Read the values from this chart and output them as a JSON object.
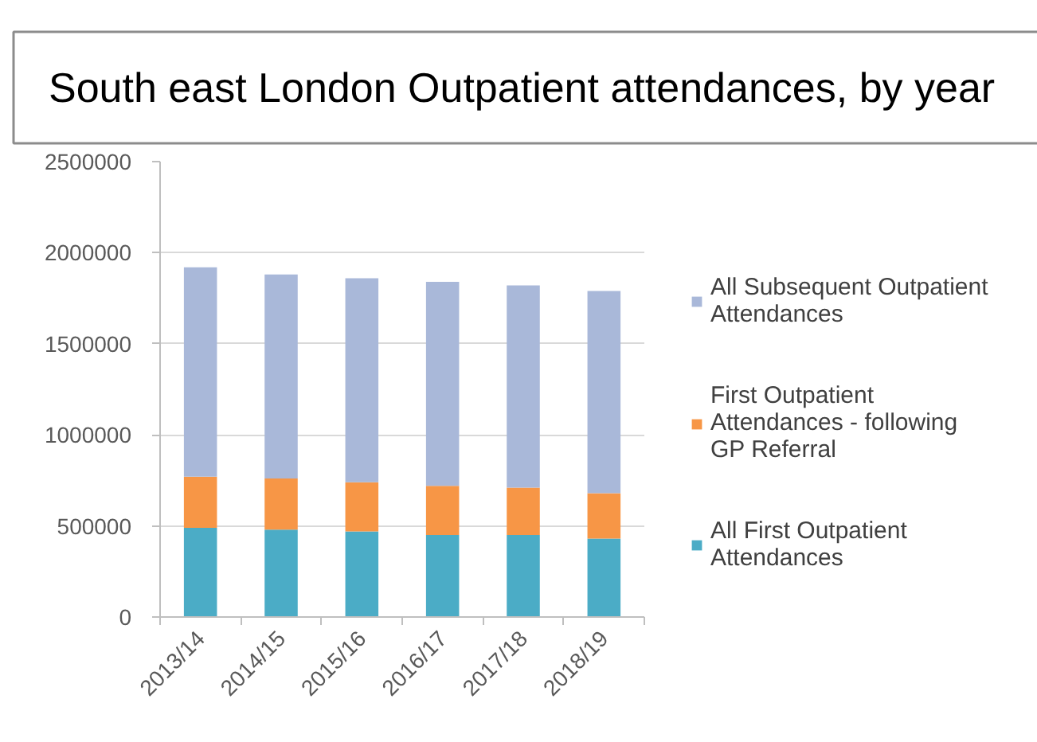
{
  "chart_data": {
    "type": "bar",
    "title": "South east London Outpatient attendances, by year",
    "categories": [
      "2013/14",
      "2014/15",
      "2015/16",
      "2016/17",
      "2017/18",
      "2018/19"
    ],
    "stacked": true,
    "series": [
      {
        "name": "All First Outpatient Attendances",
        "color": "#4bacc6",
        "values": [
          490000,
          480000,
          470000,
          450000,
          450000,
          430000
        ]
      },
      {
        "name": "First Outpatient Attendances - following GP Referral",
        "color": "#f79646",
        "values": [
          280000,
          280000,
          270000,
          270000,
          260000,
          250000
        ]
      },
      {
        "name": "All Subsequent Outpatient Attendances",
        "color": "#a9b8d9",
        "values": [
          1150000,
          1120000,
          1120000,
          1120000,
          1110000,
          1110000
        ]
      }
    ],
    "ylim": [
      0,
      2500000
    ],
    "yticks": [
      0,
      500000,
      1000000,
      1500000,
      2000000,
      2500000
    ],
    "grid": "y",
    "legend": "right"
  }
}
